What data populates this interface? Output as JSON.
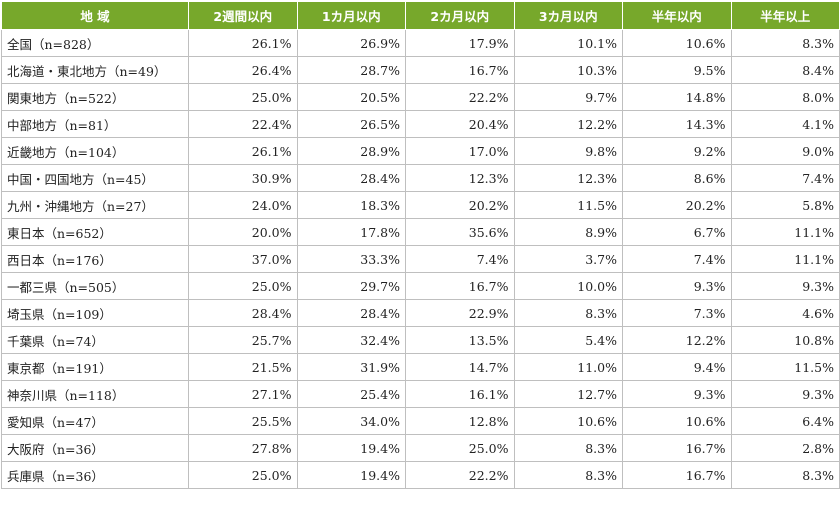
{
  "table": {
    "headers": [
      "地 域",
      "2週間以内",
      "1カ月以内",
      "2カ月以内",
      "3カ月以内",
      "半年以内",
      "半年以上"
    ],
    "rows": [
      [
        "全国（n=828）",
        "26.1%",
        "26.9%",
        "17.9%",
        "10.1%",
        "10.6%",
        "8.3%"
      ],
      [
        "北海道・東北地方（n=49）",
        "26.4%",
        "28.7%",
        "16.7%",
        "10.3%",
        "9.5%",
        "8.4%"
      ],
      [
        "関東地方（n=522）",
        "25.0%",
        "20.5%",
        "22.2%",
        "9.7%",
        "14.8%",
        "8.0%"
      ],
      [
        "中部地方（n=81）",
        "22.4%",
        "26.5%",
        "20.4%",
        "12.2%",
        "14.3%",
        "4.1%"
      ],
      [
        "近畿地方（n=104）",
        "26.1%",
        "28.9%",
        "17.0%",
        "9.8%",
        "9.2%",
        "9.0%"
      ],
      [
        "中国・四国地方（n=45）",
        "30.9%",
        "28.4%",
        "12.3%",
        "12.3%",
        "8.6%",
        "7.4%"
      ],
      [
        "九州・沖縄地方（n=27）",
        "24.0%",
        "18.3%",
        "20.2%",
        "11.5%",
        "20.2%",
        "5.8%"
      ],
      [
        "東日本（n=652）",
        "20.0%",
        "17.8%",
        "35.6%",
        "8.9%",
        "6.7%",
        "11.1%"
      ],
      [
        "西日本（n=176）",
        "37.0%",
        "33.3%",
        "7.4%",
        "3.7%",
        "7.4%",
        "11.1%"
      ],
      [
        "一都三県（n=505）",
        "25.0%",
        "29.7%",
        "16.7%",
        "10.0%",
        "9.3%",
        "9.3%"
      ],
      [
        "埼玉県（n=109）",
        "28.4%",
        "28.4%",
        "22.9%",
        "8.3%",
        "7.3%",
        "4.6%"
      ],
      [
        "千葉県（n=74）",
        "25.7%",
        "32.4%",
        "13.5%",
        "5.4%",
        "12.2%",
        "10.8%"
      ],
      [
        "東京都（n=191）",
        "21.5%",
        "31.9%",
        "14.7%",
        "11.0%",
        "9.4%",
        "11.5%"
      ],
      [
        "神奈川県（n=118）",
        "27.1%",
        "25.4%",
        "16.1%",
        "12.7%",
        "9.3%",
        "9.3%"
      ],
      [
        "愛知県（n=47）",
        "25.5%",
        "34.0%",
        "12.8%",
        "10.6%",
        "10.6%",
        "6.4%"
      ],
      [
        "大阪府（n=36）",
        "27.8%",
        "19.4%",
        "25.0%",
        "8.3%",
        "16.7%",
        "2.8%"
      ],
      [
        "兵庫県（n=36）",
        "25.0%",
        "19.4%",
        "22.2%",
        "8.3%",
        "16.7%",
        "8.3%"
      ]
    ]
  },
  "colors": {
    "header_bg": "#77a82b",
    "header_text": "#ffffff",
    "grid": "#bfbfbf"
  }
}
